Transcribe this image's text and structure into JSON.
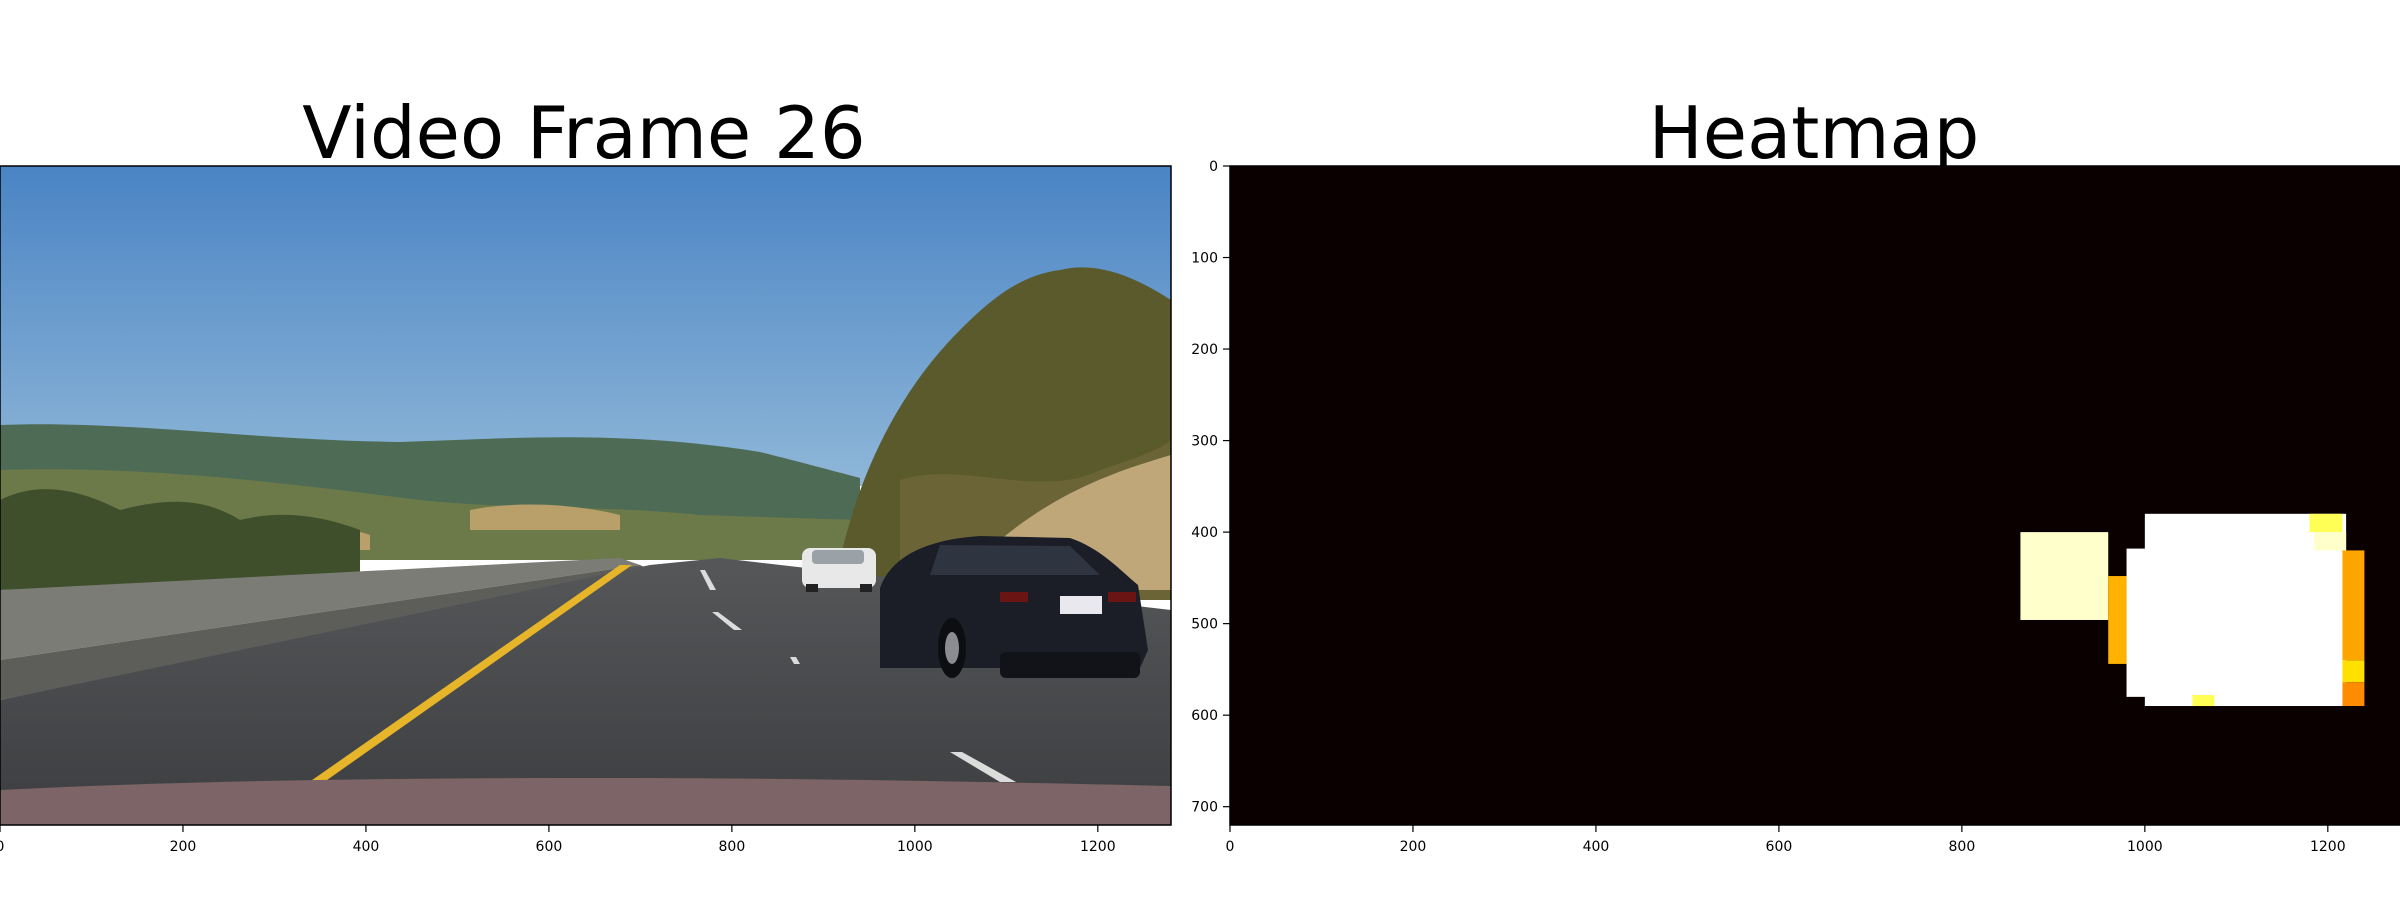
{
  "chart_data": [
    {
      "type": "image",
      "title": "Video Frame 26",
      "image": "dashcam road scene: highway with yellow lane line, white car and dark sedan on the right, hills and trees",
      "xlim": [
        0,
        1280
      ],
      "ylim": [
        720,
        0
      ],
      "xticks": [
        "0",
        "200",
        "400",
        "600",
        "800",
        "1000",
        "1200"
      ]
    },
    {
      "type": "heatmap",
      "title": "Heatmap",
      "colormap": "hot",
      "background_color": "#0b0000",
      "xlim": [
        0,
        1280
      ],
      "ylim": [
        720,
        0
      ],
      "xticks": [
        "0",
        "200",
        "400",
        "600",
        "800",
        "1000",
        "1200"
      ],
      "yticks": [
        "0",
        "100",
        "200",
        "300",
        "400",
        "500",
        "600",
        "700"
      ],
      "hot_regions": [
        {
          "x": [
            864,
            960
          ],
          "y": [
            400,
            496
          ],
          "color": "#ffffcc"
        },
        {
          "x": [
            960,
            980
          ],
          "y": [
            448,
            544
          ],
          "color": "#ffb300"
        },
        {
          "x": [
            980,
            1040
          ],
          "y": [
            418,
            580
          ],
          "color": "#ffffff"
        },
        {
          "x": [
            1000,
            1220
          ],
          "y": [
            380,
            590
          ],
          "color": "#ffffff"
        },
        {
          "x": [
            1180,
            1216
          ],
          "y": [
            380,
            400
          ],
          "color": "#ffff55"
        },
        {
          "x": [
            1185,
            1220
          ],
          "y": [
            400,
            420
          ],
          "color": "#ffffcc"
        },
        {
          "x": [
            1216,
            1240
          ],
          "y": [
            420,
            540
          ],
          "color": "#ffa500"
        },
        {
          "x": [
            1216,
            1240
          ],
          "y": [
            540,
            564
          ],
          "color": "#ffe000"
        },
        {
          "x": [
            1216,
            1240
          ],
          "y": [
            564,
            590
          ],
          "color": "#ff8c00"
        },
        {
          "x": [
            1052,
            1076
          ],
          "y": [
            578,
            590
          ],
          "color": "#ffff55"
        }
      ]
    }
  ]
}
